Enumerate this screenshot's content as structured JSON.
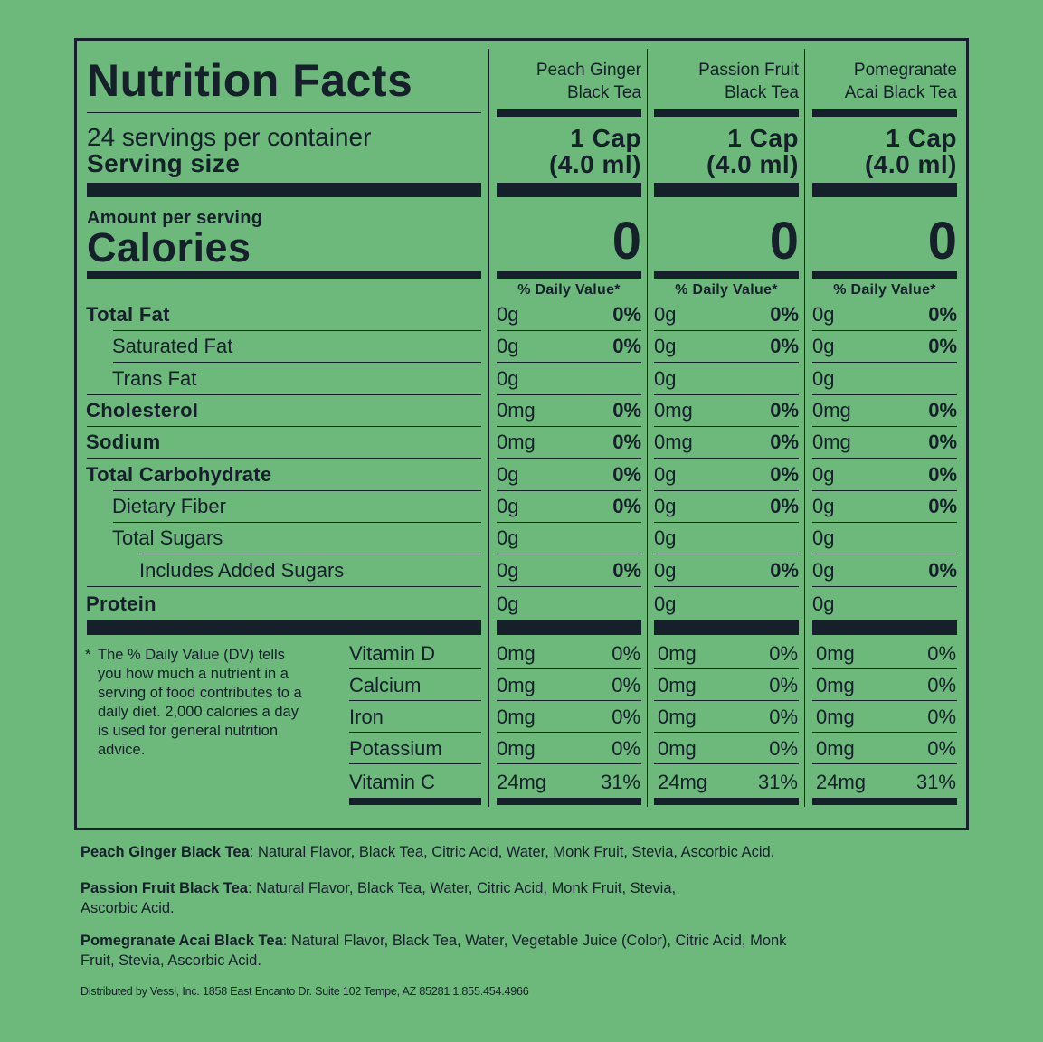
{
  "label": {
    "title": "Nutrition Facts",
    "servings_per_container": "24 servings per container",
    "serving_size_label": "Serving size",
    "amount_per_serving": "Amount per serving",
    "calories_label": "Calories",
    "daily_value_header": "% Daily Value*",
    "footnote_star": "*",
    "footnote": "The % Daily Value (DV) tells you how much a nutrient in a serving of food contributes to a daily diet. 2,000 calories a day is used for general nutrition advice."
  },
  "products": [
    {
      "name_line1": "Peach Ginger",
      "name_line2": "Black Tea",
      "serving_line1": "1 Cap",
      "serving_line2": "(4.0 ml)",
      "calories": "0"
    },
    {
      "name_line1": "Passion Fruit",
      "name_line2": "Black Tea",
      "serving_line1": "1 Cap",
      "serving_line2": "(4.0 ml)",
      "calories": "0"
    },
    {
      "name_line1": "Pomegranate",
      "name_line2": "Acai Black Tea",
      "serving_line1": "1 Cap",
      "serving_line2": "(4.0 ml)",
      "calories": "0"
    }
  ],
  "nutrients": [
    {
      "name": "Total Fat",
      "amount": "0g",
      "dv": "0%"
    },
    {
      "name": "Saturated Fat",
      "amount": "0g",
      "dv": "0%"
    },
    {
      "name": "Trans Fat",
      "amount": "0g",
      "dv": ""
    },
    {
      "name": "Cholesterol",
      "amount": "0mg",
      "dv": "0%"
    },
    {
      "name": "Sodium",
      "amount": "0mg",
      "dv": "0%"
    },
    {
      "name": "Total Carbohydrate",
      "amount": "0g",
      "dv": "0%"
    },
    {
      "name": "Dietary Fiber",
      "amount": "0g",
      "dv": "0%"
    },
    {
      "name": "Total Sugars",
      "amount": "0g",
      "dv": ""
    },
    {
      "name": "Includes Added Sugars",
      "amount": "0g",
      "dv": "0%"
    },
    {
      "name": "Protein",
      "amount": "0g",
      "dv": ""
    }
  ],
  "vitamins": [
    {
      "name": "Vitamin D",
      "amount": "0mg",
      "dv": "0%"
    },
    {
      "name": "Calcium",
      "amount": "0mg",
      "dv": "0%"
    },
    {
      "name": "Iron",
      "amount": "0mg",
      "dv": "0%"
    },
    {
      "name": "Potassium",
      "amount": "0mg",
      "dv": "0%"
    },
    {
      "name": "Vitamin C",
      "amount": "24mg",
      "dv": "31%"
    }
  ],
  "ingredients": [
    {
      "product": "Peach Ginger Black Tea",
      "separator": ":",
      "list": " Natural Flavor, Black Tea, Citric Acid, Water, Monk Fruit, Stevia, Ascorbic Acid."
    },
    {
      "product": "Passion Fruit Black Tea",
      "separator": ":",
      "list": " Natural Flavor, Black Tea, Water, Citric Acid, Monk Fruit, Stevia, Ascorbic Acid."
    },
    {
      "product": "Pomegranate Acai Black Tea",
      "separator": ":",
      "list": " Natural Flavor, Black Tea, Water, Vegetable Juice (Color), Citric Acid, Monk Fruit, Stevia, Ascorbic Acid."
    }
  ],
  "distributor": "Distributed by Vessl, Inc. 1858 East Encanto Dr. Suite 102 Tempe, AZ 85281 1.855.454.4966"
}
